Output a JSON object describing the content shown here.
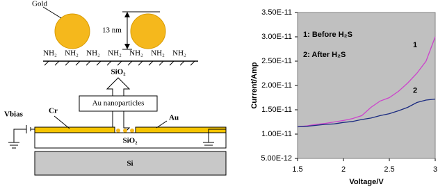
{
  "diagram": {
    "gold": "Gold",
    "size": "13 nm",
    "amine_labels": [
      "NH₂",
      "NH₂",
      "NH₂",
      "NH₂",
      "NH₂",
      "NH₂",
      "NH₂"
    ],
    "substrate_top": "SiO₂",
    "au_nanoparticles": "Au nanoparticles",
    "vbias": "Vbias",
    "cr": "Cr",
    "au": "Au",
    "oxide": "SiO₂",
    "silicon": "Si"
  },
  "chart_data": {
    "type": "line",
    "x": [
      1.5,
      1.6,
      1.7,
      1.8,
      1.9,
      2.0,
      2.1,
      2.2,
      2.3,
      2.4,
      2.5,
      2.6,
      2.7,
      2.8,
      2.9,
      3.0
    ],
    "series": [
      {
        "name": "1",
        "color": "#cc44cc",
        "values": [
          1.15e-11,
          1.17e-11,
          1.2e-11,
          1.22e-11,
          1.25e-11,
          1.28e-11,
          1.32e-11,
          1.38e-11,
          1.55e-11,
          1.68e-11,
          1.75e-11,
          1.88e-11,
          2.05e-11,
          2.25e-11,
          2.5e-11,
          3e-11
        ]
      },
      {
        "name": "2",
        "color": "#1a2a80",
        "values": [
          1.15e-11,
          1.16e-11,
          1.18e-11,
          1.2e-11,
          1.21e-11,
          1.24e-11,
          1.26e-11,
          1.3e-11,
          1.33e-11,
          1.38e-11,
          1.42e-11,
          1.48e-11,
          1.55e-11,
          1.65e-11,
          1.7e-11,
          1.72e-11
        ]
      }
    ],
    "annotations": [
      "1: Before H₂S",
      "2: After H₂S"
    ],
    "x_label": "Voltage/V",
    "y_label": "Current/Amp",
    "xlim": [
      1.5,
      3
    ],
    "xticks": [
      1.5,
      2,
      2.5,
      3
    ],
    "ylim": [
      5e-12,
      3.5e-11
    ],
    "yticks": [
      {
        "value": 5e-12,
        "label": "5.00E-12"
      },
      {
        "value": 1e-11,
        "label": "1.00E-11"
      },
      {
        "value": 1.5e-11,
        "label": "1.50E-11"
      },
      {
        "value": 2e-11,
        "label": "2.00E-11"
      },
      {
        "value": 2.5e-11,
        "label": "2.50E-11"
      },
      {
        "value": 3e-11,
        "label": "3.00E-11"
      },
      {
        "value": 3.5e-11,
        "label": "3.50E-11"
      }
    ],
    "grid": false,
    "background": "#c0c0c0"
  }
}
